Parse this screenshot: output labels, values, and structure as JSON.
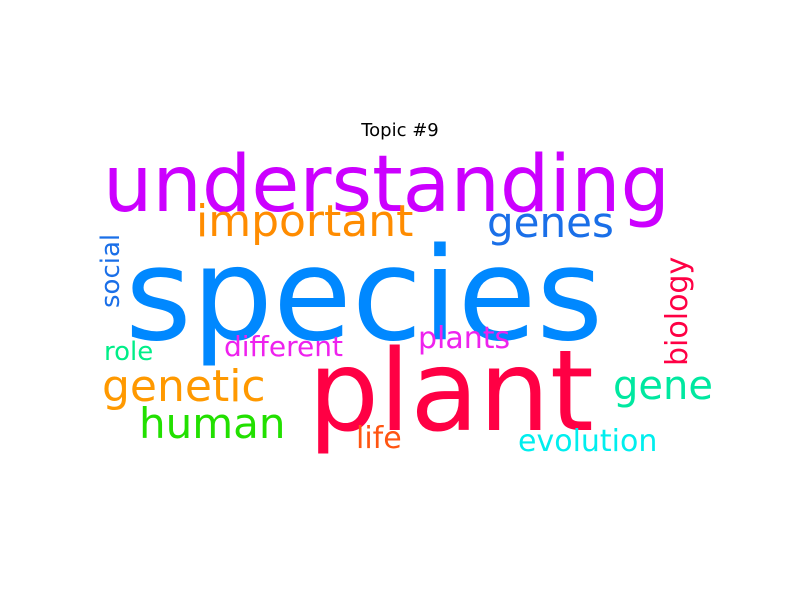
{
  "title": "Topic #9",
  "words": [
    {
      "id": "understanding",
      "text": "understanding",
      "color": "#cc00ff"
    },
    {
      "id": "species",
      "text": "species",
      "color": "#0088ff"
    },
    {
      "id": "plant",
      "text": "plant",
      "color": "#ff0044"
    },
    {
      "id": "important",
      "text": "important",
      "color": "#ff8c00"
    },
    {
      "id": "genes",
      "text": "genes",
      "color": "#1a6fe8"
    },
    {
      "id": "genetic",
      "text": "genetic",
      "color": "#ff9900"
    },
    {
      "id": "human",
      "text": "human",
      "color": "#22e000"
    },
    {
      "id": "gene",
      "text": "gene",
      "color": "#00e8a0"
    },
    {
      "id": "evolution",
      "text": "evolution",
      "color": "#00eeee"
    },
    {
      "id": "life",
      "text": "life",
      "color": "#ff5511"
    },
    {
      "id": "plants",
      "text": "plants",
      "color": "#ee22ee"
    },
    {
      "id": "different",
      "text": "different",
      "color": "#ee22ee"
    },
    {
      "id": "role",
      "text": "role",
      "color": "#00ee88"
    },
    {
      "id": "social",
      "text": "social",
      "color": "#1a6fe8"
    },
    {
      "id": "biology",
      "text": "biology",
      "color": "#ff0044"
    }
  ]
}
